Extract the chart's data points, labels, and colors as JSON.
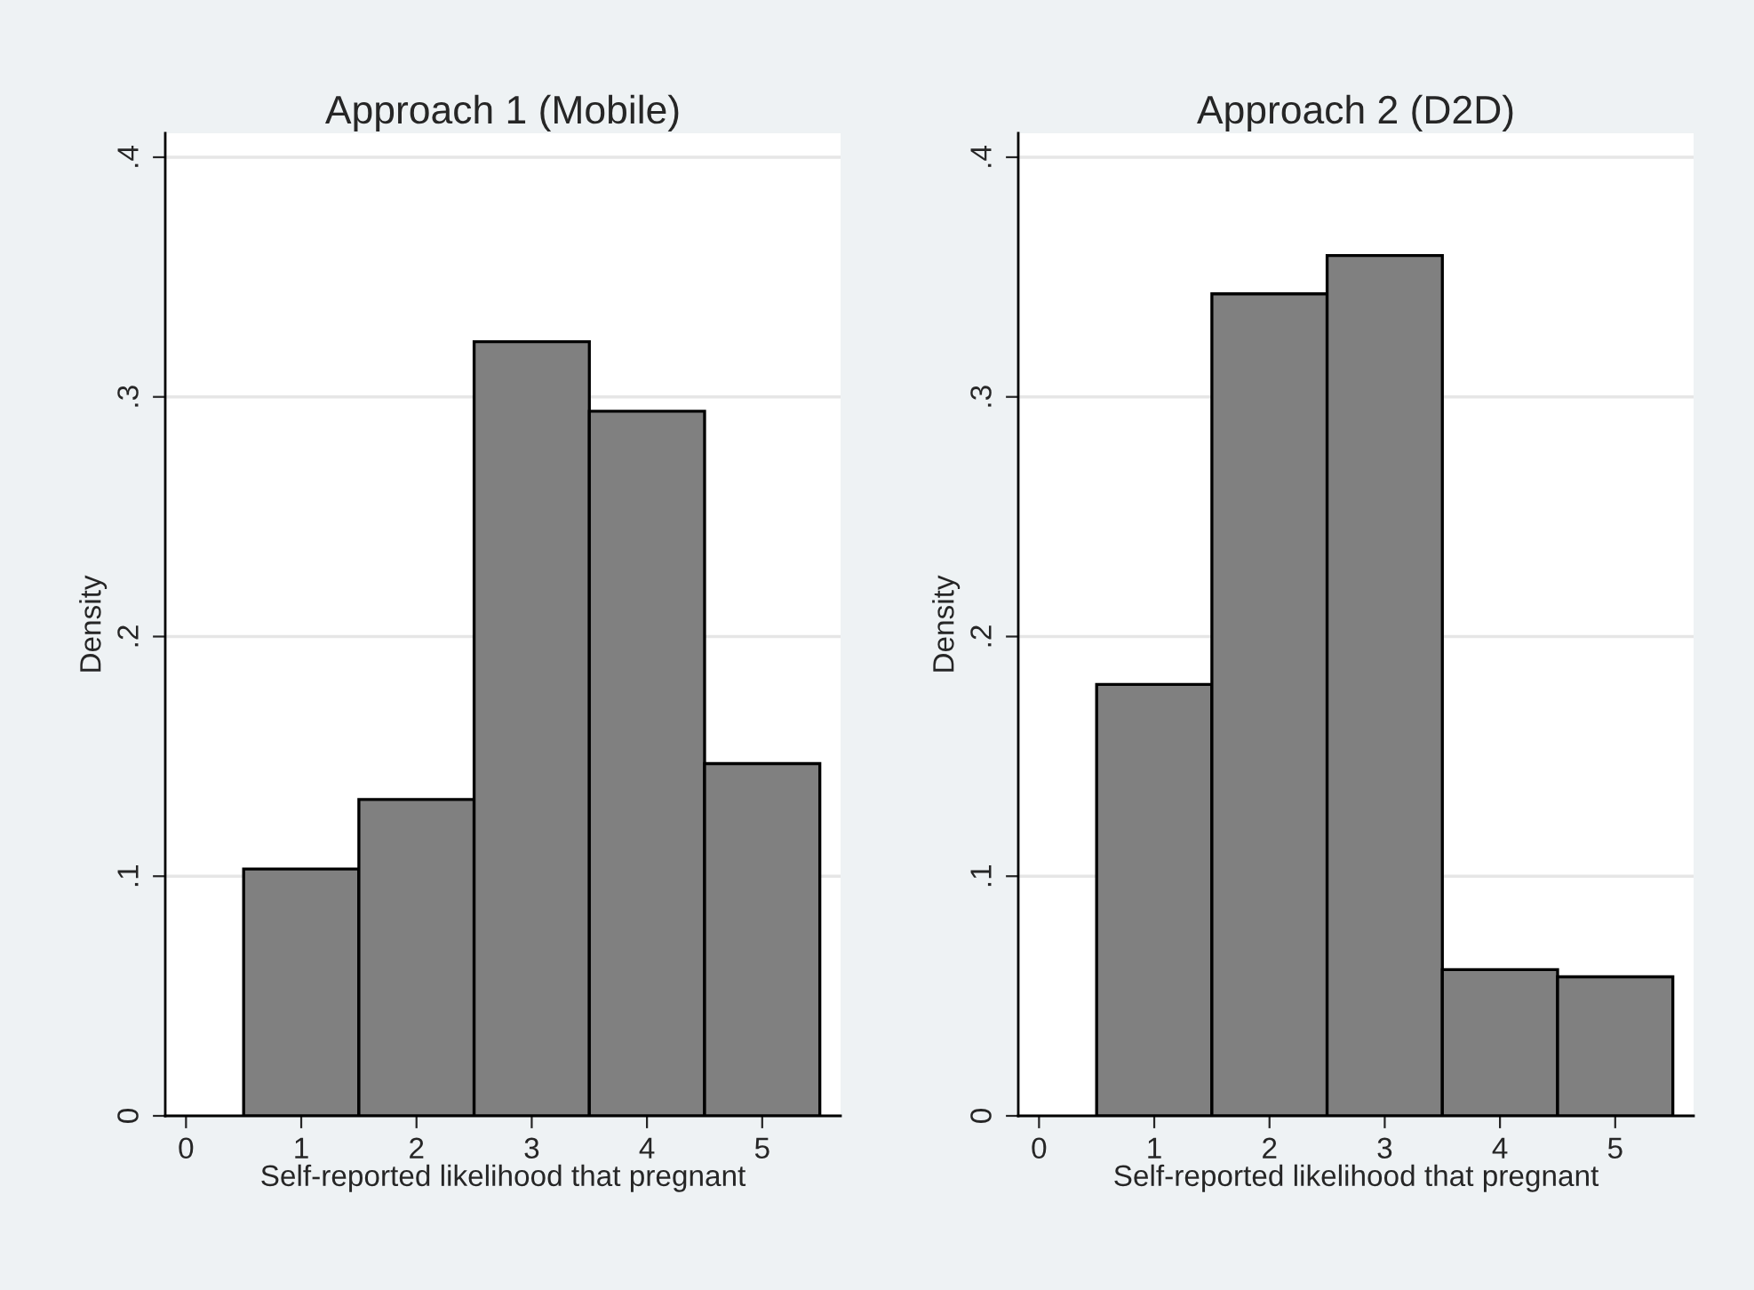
{
  "chart_data": [
    {
      "type": "histogram",
      "title": "Approach 1 (Mobile)",
      "xlabel": "Self-reported likelihood that pregnant",
      "ylabel": "Density",
      "bins": [
        0.5,
        1.5,
        2.5,
        3.5,
        4.5,
        5.5
      ],
      "values": [
        0.103,
        0.132,
        0.323,
        0.294,
        0.147
      ],
      "color": "#808080",
      "xlim": [
        -0.18,
        5.68
      ],
      "ylim": [
        0,
        0.41
      ],
      "xticks": [
        0,
        1,
        2,
        3,
        4,
        5
      ],
      "yticks": [
        {
          "value": 0,
          "label": "0"
        },
        {
          "value": 0.1,
          "label": ".1"
        },
        {
          "value": 0.2,
          "label": ".2"
        },
        {
          "value": 0.3,
          "label": ".3"
        },
        {
          "value": 0.4,
          "label": ".4"
        }
      ],
      "grid": "y"
    },
    {
      "type": "histogram",
      "title": "Approach 2 (D2D)",
      "xlabel": "Self-reported likelihood that pregnant",
      "ylabel": "Density",
      "bins": [
        0.5,
        1.5,
        2.5,
        3.5,
        4.5,
        5.5
      ],
      "values": [
        0.18,
        0.343,
        0.359,
        0.061,
        0.058
      ],
      "color": "#808080",
      "xlim": [
        -0.18,
        5.68
      ],
      "ylim": [
        0,
        0.41
      ],
      "xticks": [
        0,
        1,
        2,
        3,
        4,
        5
      ],
      "yticks": [
        {
          "value": 0,
          "label": "0"
        },
        {
          "value": 0.1,
          "label": ".1"
        },
        {
          "value": 0.2,
          "label": ".2"
        },
        {
          "value": 0.3,
          "label": ".3"
        },
        {
          "value": 0.4,
          "label": ".4"
        }
      ],
      "grid": "y"
    }
  ]
}
